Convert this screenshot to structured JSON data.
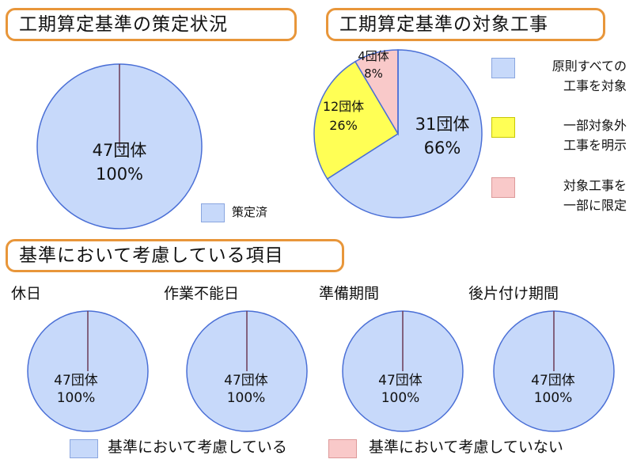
{
  "colors": {
    "blue": "#c7d9fa",
    "yellow": "#ffff55",
    "pink": "#f9c9c9",
    "stroke": "#4a6fd6",
    "divider": "#6a3b55",
    "border": "#e8963a"
  },
  "titles": {
    "status": "工期算定基準の策定状況",
    "scope": "工期算定基準の対象工事",
    "items": "基準において考慮している項目"
  },
  "chart_data": [
    {
      "type": "pie",
      "title": "工期算定基準の策定状況",
      "slices": [
        {
          "name": "策定済",
          "count_label": "47団体",
          "pct_label": "100%",
          "value": 47,
          "color": "#c7d9fa"
        }
      ],
      "legend": "bottom-right"
    },
    {
      "type": "pie",
      "title": "工期算定基準の対象工事",
      "slices": [
        {
          "name": "原則すべての工事を対象",
          "name_lines": [
            "原則すべての",
            "工事を対象"
          ],
          "count_label": "31団体",
          "pct_label": "66%",
          "value": 31,
          "color": "#c7d9fa"
        },
        {
          "name": "一部対象外工事を明示",
          "name_lines": [
            "一部対象外",
            "工事を明示"
          ],
          "count_label": "12団体",
          "pct_label": "26%",
          "value": 12,
          "color": "#ffff55"
        },
        {
          "name": "対象工事を一部に限定",
          "name_lines": [
            "対象工事を",
            "一部に限定"
          ],
          "count_label": "4団体",
          "pct_label": "8%",
          "value": 4,
          "color": "#f9c9c9"
        }
      ],
      "legend": "right"
    },
    {
      "type": "pie",
      "title": "休日",
      "slices": [
        {
          "name": "基準において考慮している",
          "count_label": "47団体",
          "pct_label": "100%",
          "value": 47,
          "color": "#c7d9fa"
        }
      ]
    },
    {
      "type": "pie",
      "title": "作業不能日",
      "slices": [
        {
          "name": "基準において考慮している",
          "count_label": "47団体",
          "pct_label": "100%",
          "value": 47,
          "color": "#c7d9fa"
        }
      ]
    },
    {
      "type": "pie",
      "title": "準備期間",
      "slices": [
        {
          "name": "基準において考慮している",
          "count_label": "47団体",
          "pct_label": "100%",
          "value": 47,
          "color": "#c7d9fa"
        }
      ]
    },
    {
      "type": "pie",
      "title": "後片付け期間",
      "slices": [
        {
          "name": "基準において考慮している",
          "count_label": "47団体",
          "pct_label": "100%",
          "value": 47,
          "color": "#c7d9fa"
        }
      ]
    }
  ],
  "bottom_legend": [
    {
      "label": "基準において考慮している",
      "color": "#c7d9fa"
    },
    {
      "label": "基準において考慮していない",
      "color": "#f9c9c9"
    }
  ]
}
